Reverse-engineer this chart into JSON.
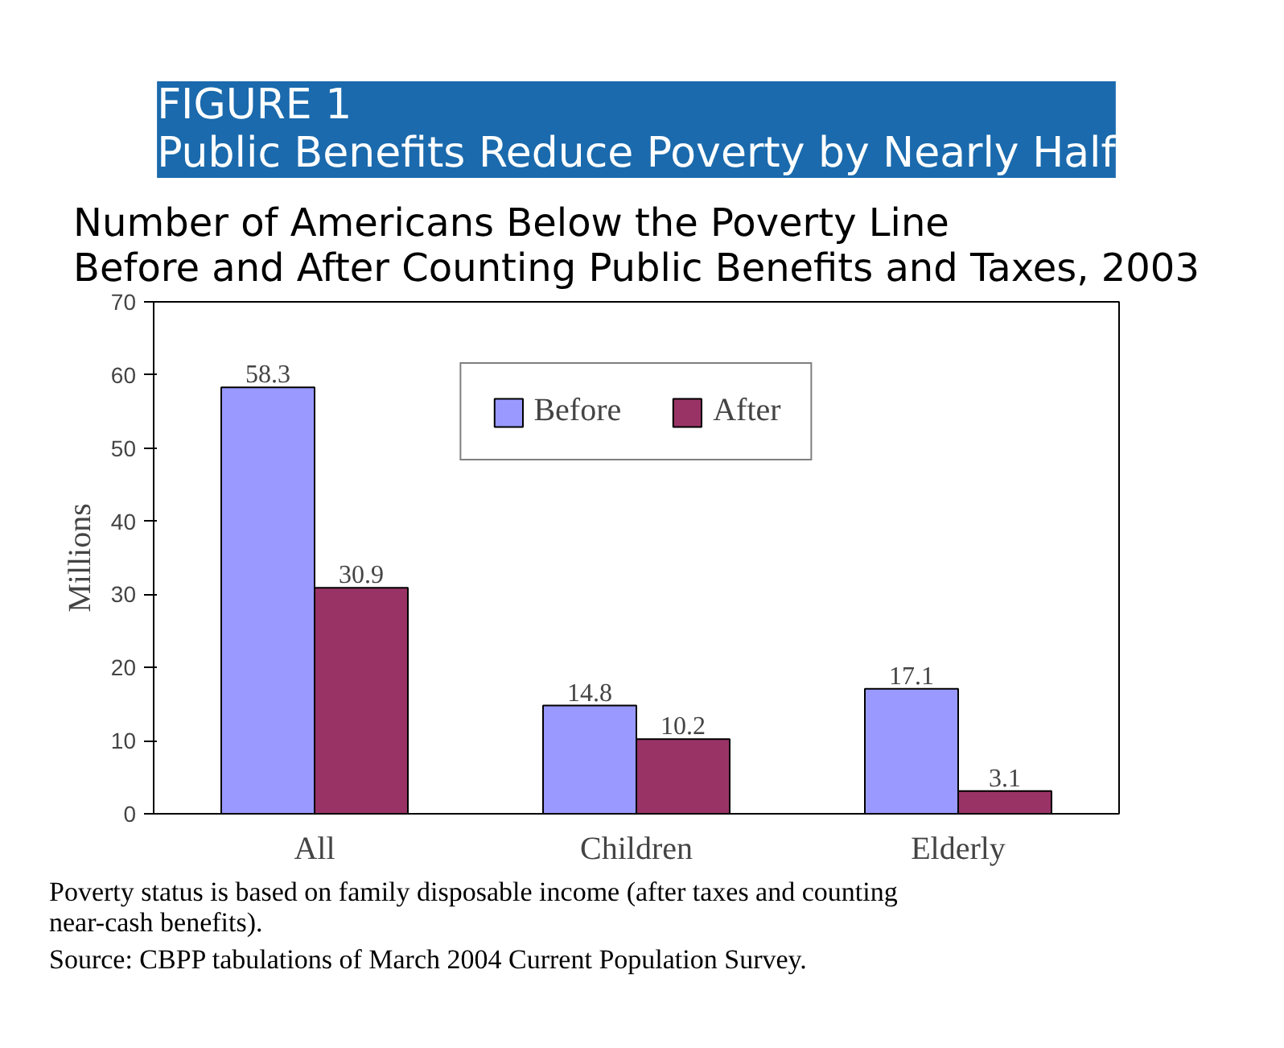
{
  "chart_data": {
    "type": "bar",
    "title": "FIGURE 1\nPublic Benefits Reduce Poverty by Nearly Half",
    "subtitle": "Number of Americans Below the Poverty Line\nBefore and After Counting Public Benefits and Taxes, 2003",
    "ylabel": "Millions",
    "categories": [
      "All",
      "Children",
      "Elderly"
    ],
    "series": [
      {
        "name": "Before",
        "color": "#9999ff",
        "values": [
          58.3,
          14.8,
          17.1
        ]
      },
      {
        "name": "After",
        "color": "#993366",
        "values": [
          30.9,
          10.2,
          3.1
        ]
      }
    ],
    "ylim": [
      0,
      70
    ],
    "yticks": [
      0,
      10,
      20,
      30,
      40,
      50,
      60,
      70
    ],
    "data_labels": true,
    "legend": "top",
    "grid": false,
    "annotations": [
      "Poverty status is based on family disposable income (after taxes and counting near-cash benefits).",
      "Source: CBPP tabulations of March 2004 Current Population Survey."
    ]
  }
}
